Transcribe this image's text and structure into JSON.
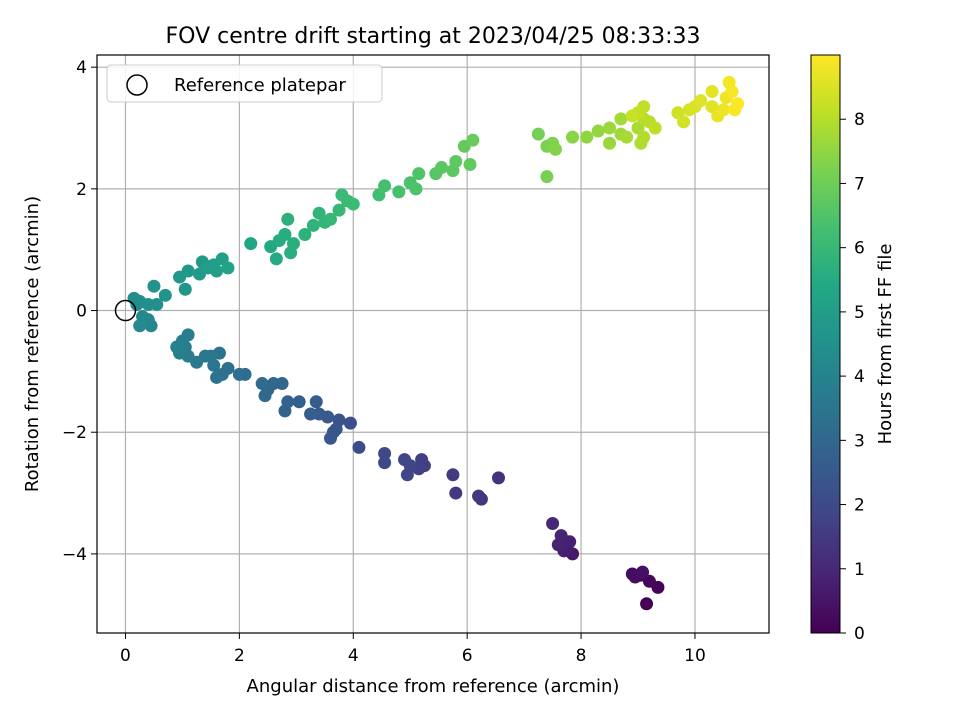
{
  "chart_data": {
    "type": "scatter",
    "title": "FOV centre drift starting at 2023/04/25 08:33:33",
    "xlabel": "Angular distance from reference (arcmin)",
    "ylabel": "Rotation from reference (arcmin)",
    "xlim": [
      -0.5,
      11.3
    ],
    "ylim": [
      -5.3,
      4.2
    ],
    "xticks": [
      0,
      2,
      4,
      6,
      8,
      10
    ],
    "yticks": [
      -4,
      -2,
      0,
      2,
      4
    ],
    "xtick_labels": [
      "0",
      "2",
      "4",
      "6",
      "8",
      "10"
    ],
    "ytick_labels": [
      "−4",
      "−2",
      "0",
      "2",
      "4"
    ],
    "grid": true,
    "legend": {
      "position": "top-left",
      "entries": [
        "Reference platepar"
      ]
    },
    "reference_point": {
      "x": 0,
      "y": 0
    },
    "colorbar": {
      "label": "Hours from first FF file",
      "colormap": "viridis",
      "range": [
        0,
        9
      ],
      "ticks": [
        0,
        1,
        2,
        3,
        4,
        5,
        6,
        7,
        8
      ],
      "tick_labels": [
        "0",
        "1",
        "2",
        "3",
        "4",
        "5",
        "6",
        "7",
        "8"
      ]
    },
    "points": [
      {
        "x": 9.15,
        "y": -4.82,
        "h": 0.05
      },
      {
        "x": 9.35,
        "y": -4.55,
        "h": 0.1
      },
      {
        "x": 9.2,
        "y": -4.45,
        "h": 0.15
      },
      {
        "x": 9.05,
        "y": -4.35,
        "h": 0.2
      },
      {
        "x": 8.95,
        "y": -4.38,
        "h": 0.25
      },
      {
        "x": 8.9,
        "y": -4.33,
        "h": 0.3
      },
      {
        "x": 9.08,
        "y": -4.3,
        "h": 0.35
      },
      {
        "x": 7.85,
        "y": -4.0,
        "h": 0.6
      },
      {
        "x": 7.75,
        "y": -3.9,
        "h": 0.7
      },
      {
        "x": 7.7,
        "y": -3.95,
        "h": 0.75
      },
      {
        "x": 7.8,
        "y": -3.8,
        "h": 0.8
      },
      {
        "x": 7.6,
        "y": -3.85,
        "h": 0.85
      },
      {
        "x": 7.65,
        "y": -3.7,
        "h": 0.9
      },
      {
        "x": 7.5,
        "y": -3.5,
        "h": 1.0
      },
      {
        "x": 6.55,
        "y": -2.75,
        "h": 1.3
      },
      {
        "x": 6.25,
        "y": -3.1,
        "h": 1.35
      },
      {
        "x": 6.2,
        "y": -3.05,
        "h": 1.4
      },
      {
        "x": 5.8,
        "y": -3.0,
        "h": 1.5
      },
      {
        "x": 5.75,
        "y": -2.7,
        "h": 1.55
      },
      {
        "x": 5.25,
        "y": -2.55,
        "h": 1.65
      },
      {
        "x": 5.2,
        "y": -2.45,
        "h": 1.7
      },
      {
        "x": 5.15,
        "y": -2.6,
        "h": 1.75
      },
      {
        "x": 5.0,
        "y": -2.55,
        "h": 1.8
      },
      {
        "x": 4.95,
        "y": -2.7,
        "h": 1.85
      },
      {
        "x": 4.9,
        "y": -2.45,
        "h": 1.9
      },
      {
        "x": 4.55,
        "y": -2.35,
        "h": 1.95
      },
      {
        "x": 4.55,
        "y": -2.5,
        "h": 2.0
      },
      {
        "x": 4.1,
        "y": -2.25,
        "h": 2.1
      },
      {
        "x": 3.95,
        "y": -1.85,
        "h": 2.2
      },
      {
        "x": 3.75,
        "y": -1.8,
        "h": 2.3
      },
      {
        "x": 3.7,
        "y": -1.95,
        "h": 2.35
      },
      {
        "x": 3.65,
        "y": -2.0,
        "h": 2.4
      },
      {
        "x": 3.6,
        "y": -2.1,
        "h": 2.45
      },
      {
        "x": 3.55,
        "y": -1.75,
        "h": 2.5
      },
      {
        "x": 3.4,
        "y": -1.7,
        "h": 2.55
      },
      {
        "x": 3.35,
        "y": -1.5,
        "h": 2.6
      },
      {
        "x": 3.25,
        "y": -1.7,
        "h": 2.65
      },
      {
        "x": 3.05,
        "y": -1.5,
        "h": 2.75
      },
      {
        "x": 2.85,
        "y": -1.5,
        "h": 2.8
      },
      {
        "x": 2.8,
        "y": -1.65,
        "h": 2.85
      },
      {
        "x": 2.75,
        "y": -1.2,
        "h": 2.9
      },
      {
        "x": 2.6,
        "y": -1.2,
        "h": 2.95
      },
      {
        "x": 2.5,
        "y": -1.3,
        "h": 3.0
      },
      {
        "x": 2.45,
        "y": -1.4,
        "h": 3.05
      },
      {
        "x": 2.4,
        "y": -1.2,
        "h": 3.1
      },
      {
        "x": 2.1,
        "y": -1.05,
        "h": 3.2
      },
      {
        "x": 2.0,
        "y": -1.05,
        "h": 3.25
      },
      {
        "x": 1.8,
        "y": -0.95,
        "h": 3.3
      },
      {
        "x": 1.7,
        "y": -1.05,
        "h": 3.35
      },
      {
        "x": 1.65,
        "y": -0.7,
        "h": 3.4
      },
      {
        "x": 1.6,
        "y": -1.1,
        "h": 3.45
      },
      {
        "x": 1.55,
        "y": -0.9,
        "h": 3.5
      },
      {
        "x": 1.5,
        "y": -0.75,
        "h": 3.55
      },
      {
        "x": 1.4,
        "y": -0.75,
        "h": 3.6
      },
      {
        "x": 1.25,
        "y": -0.85,
        "h": 3.65
      },
      {
        "x": 1.1,
        "y": -0.75,
        "h": 3.7
      },
      {
        "x": 1.05,
        "y": -0.6,
        "h": 3.75
      },
      {
        "x": 1.1,
        "y": -0.4,
        "h": 3.8
      },
      {
        "x": 1.0,
        "y": -0.5,
        "h": 3.85
      },
      {
        "x": 0.95,
        "y": -0.7,
        "h": 3.9
      },
      {
        "x": 0.9,
        "y": -0.6,
        "h": 3.95
      },
      {
        "x": 0.45,
        "y": -0.25,
        "h": 4.1
      },
      {
        "x": 0.4,
        "y": -0.15,
        "h": 4.15
      },
      {
        "x": 0.3,
        "y": -0.1,
        "h": 4.2
      },
      {
        "x": 0.25,
        "y": -0.25,
        "h": 4.25
      },
      {
        "x": 0.2,
        "y": 0.1,
        "h": 4.3
      },
      {
        "x": 0.15,
        "y": 0.2,
        "h": 4.35
      },
      {
        "x": 0.25,
        "y": 0.15,
        "h": 4.4
      },
      {
        "x": 0.4,
        "y": 0.1,
        "h": 4.45
      },
      {
        "x": 0.55,
        "y": 0.1,
        "h": 4.5
      },
      {
        "x": 0.5,
        "y": 0.4,
        "h": 4.55
      },
      {
        "x": 0.7,
        "y": 0.25,
        "h": 4.6
      },
      {
        "x": 0.95,
        "y": 0.55,
        "h": 4.7
      },
      {
        "x": 1.05,
        "y": 0.35,
        "h": 4.75
      },
      {
        "x": 1.1,
        "y": 0.65,
        "h": 4.8
      },
      {
        "x": 1.3,
        "y": 0.6,
        "h": 4.85
      },
      {
        "x": 1.35,
        "y": 0.8,
        "h": 4.9
      },
      {
        "x": 1.45,
        "y": 0.7,
        "h": 4.95
      },
      {
        "x": 1.55,
        "y": 0.75,
        "h": 5.0
      },
      {
        "x": 1.6,
        "y": 0.65,
        "h": 5.05
      },
      {
        "x": 1.7,
        "y": 0.85,
        "h": 5.1
      },
      {
        "x": 1.8,
        "y": 0.7,
        "h": 5.15
      },
      {
        "x": 2.2,
        "y": 1.1,
        "h": 5.3
      },
      {
        "x": 2.55,
        "y": 1.05,
        "h": 5.4
      },
      {
        "x": 2.65,
        "y": 0.85,
        "h": 5.45
      },
      {
        "x": 2.7,
        "y": 1.15,
        "h": 5.5
      },
      {
        "x": 2.8,
        "y": 1.25,
        "h": 5.55
      },
      {
        "x": 2.9,
        "y": 0.95,
        "h": 5.6
      },
      {
        "x": 2.95,
        "y": 1.1,
        "h": 5.65
      },
      {
        "x": 2.85,
        "y": 1.5,
        "h": 5.7
      },
      {
        "x": 3.15,
        "y": 1.25,
        "h": 5.75
      },
      {
        "x": 3.3,
        "y": 1.4,
        "h": 5.8
      },
      {
        "x": 3.4,
        "y": 1.6,
        "h": 5.85
      },
      {
        "x": 3.5,
        "y": 1.45,
        "h": 5.9
      },
      {
        "x": 3.6,
        "y": 1.5,
        "h": 5.95
      },
      {
        "x": 3.75,
        "y": 1.65,
        "h": 6.0
      },
      {
        "x": 3.8,
        "y": 1.9,
        "h": 6.05
      },
      {
        "x": 3.9,
        "y": 1.8,
        "h": 6.1
      },
      {
        "x": 4.0,
        "y": 1.75,
        "h": 6.15
      },
      {
        "x": 4.45,
        "y": 1.9,
        "h": 6.25
      },
      {
        "x": 4.55,
        "y": 2.05,
        "h": 6.3
      },
      {
        "x": 4.8,
        "y": 1.95,
        "h": 6.35
      },
      {
        "x": 5.0,
        "y": 2.1,
        "h": 6.4
      },
      {
        "x": 5.1,
        "y": 2.0,
        "h": 6.45
      },
      {
        "x": 5.15,
        "y": 2.25,
        "h": 6.5
      },
      {
        "x": 5.45,
        "y": 2.25,
        "h": 6.6
      },
      {
        "x": 5.55,
        "y": 2.35,
        "h": 6.65
      },
      {
        "x": 5.75,
        "y": 2.3,
        "h": 6.7
      },
      {
        "x": 5.8,
        "y": 2.45,
        "h": 6.75
      },
      {
        "x": 6.05,
        "y": 2.4,
        "h": 6.8
      },
      {
        "x": 5.95,
        "y": 2.7,
        "h": 6.85
      },
      {
        "x": 6.1,
        "y": 2.8,
        "h": 6.9
      },
      {
        "x": 7.25,
        "y": 2.9,
        "h": 7.1
      },
      {
        "x": 7.4,
        "y": 2.2,
        "h": 7.15
      },
      {
        "x": 7.4,
        "y": 2.7,
        "h": 7.2
      },
      {
        "x": 7.5,
        "y": 2.75,
        "h": 7.25
      },
      {
        "x": 7.55,
        "y": 2.65,
        "h": 7.3
      },
      {
        "x": 7.85,
        "y": 2.85,
        "h": 7.4
      },
      {
        "x": 8.1,
        "y": 2.85,
        "h": 7.5
      },
      {
        "x": 8.3,
        "y": 2.95,
        "h": 7.55
      },
      {
        "x": 8.5,
        "y": 2.75,
        "h": 7.6
      },
      {
        "x": 8.5,
        "y": 3.0,
        "h": 7.65
      },
      {
        "x": 8.7,
        "y": 2.9,
        "h": 7.7
      },
      {
        "x": 8.7,
        "y": 3.15,
        "h": 7.75
      },
      {
        "x": 8.8,
        "y": 2.85,
        "h": 7.8
      },
      {
        "x": 9.0,
        "y": 3.0,
        "h": 7.85
      },
      {
        "x": 9.05,
        "y": 2.75,
        "h": 7.9
      },
      {
        "x": 9.1,
        "y": 2.85,
        "h": 7.95
      },
      {
        "x": 9.1,
        "y": 3.15,
        "h": 8.0
      },
      {
        "x": 9.2,
        "y": 3.1,
        "h": 8.05
      },
      {
        "x": 9.3,
        "y": 3.0,
        "h": 8.1
      },
      {
        "x": 9.1,
        "y": 3.35,
        "h": 8.15
      },
      {
        "x": 9.0,
        "y": 3.25,
        "h": 8.2
      },
      {
        "x": 8.9,
        "y": 3.2,
        "h": 8.25
      },
      {
        "x": 9.7,
        "y": 3.25,
        "h": 8.35
      },
      {
        "x": 9.8,
        "y": 3.1,
        "h": 8.4
      },
      {
        "x": 9.9,
        "y": 3.3,
        "h": 8.45
      },
      {
        "x": 10.0,
        "y": 3.35,
        "h": 8.5
      },
      {
        "x": 10.1,
        "y": 3.45,
        "h": 8.55
      },
      {
        "x": 10.3,
        "y": 3.35,
        "h": 8.6
      },
      {
        "x": 10.3,
        "y": 3.6,
        "h": 8.65
      },
      {
        "x": 10.4,
        "y": 3.2,
        "h": 8.7
      },
      {
        "x": 10.5,
        "y": 3.3,
        "h": 8.75
      },
      {
        "x": 10.55,
        "y": 3.5,
        "h": 8.8
      },
      {
        "x": 10.6,
        "y": 3.75,
        "h": 8.85
      },
      {
        "x": 10.65,
        "y": 3.6,
        "h": 8.9
      },
      {
        "x": 10.7,
        "y": 3.3,
        "h": 8.95
      },
      {
        "x": 10.75,
        "y": 3.4,
        "h": 9.0
      }
    ]
  }
}
